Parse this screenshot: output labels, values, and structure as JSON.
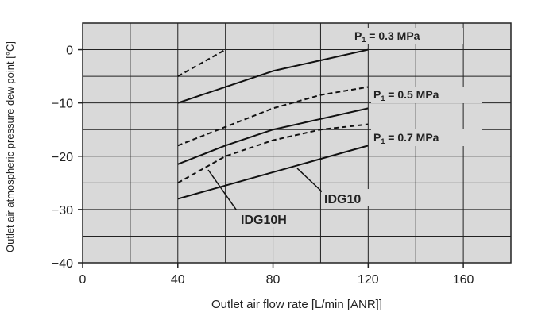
{
  "chart_data": {
    "type": "line",
    "xlabel": "Outlet air flow rate [L/min [ANR]]",
    "ylabel": "Outlet air atmospheric pressure dew point [°C]",
    "xlim": [
      0,
      180
    ],
    "ylim": [
      -40,
      5
    ],
    "x_ticks": [
      "0",
      "40",
      "80",
      "120",
      "160"
    ],
    "y_ticks": [
      "0",
      "−10",
      "−20",
      "−30",
      "−40"
    ],
    "x_tick_values": [
      0,
      40,
      80,
      120,
      160
    ],
    "y_tick_values": [
      0,
      -10,
      -20,
      -30,
      -40
    ],
    "grid": true,
    "background": "#d9d9d9",
    "pressure_labels": [
      {
        "main": "P",
        "sub": "1",
        "rest": " = 0.3 MPa"
      },
      {
        "main": "P",
        "sub": "1",
        "rest": " = 0.5 MPa"
      },
      {
        "main": "P",
        "sub": "1",
        "rest": " = 0.7 MPa"
      }
    ],
    "series_labels": [
      "IDG10",
      "IDG10H"
    ],
    "series": [
      {
        "model": "IDG10",
        "pressure": "0.3 MPa",
        "style": "solid",
        "x": [
          40,
          60,
          80,
          100,
          120
        ],
        "y": [
          -10,
          -7,
          -4,
          -2,
          0
        ]
      },
      {
        "model": "IDG10H",
        "pressure": "0.3 MPa",
        "style": "dashed",
        "x": [
          40,
          50,
          60
        ],
        "y": [
          -5,
          -2.5,
          0
        ]
      },
      {
        "model": "IDG10",
        "pressure": "0.5 MPa",
        "style": "solid",
        "x": [
          40,
          60,
          80,
          100,
          120
        ],
        "y": [
          -21.5,
          -18,
          -15,
          -13,
          -11
        ]
      },
      {
        "model": "IDG10H",
        "pressure": "0.5 MPa",
        "style": "dashed",
        "x": [
          40,
          60,
          80,
          100,
          120
        ],
        "y": [
          -18,
          -14.5,
          -11,
          -8.5,
          -7
        ]
      },
      {
        "model": "IDG10",
        "pressure": "0.7 MPa",
        "style": "solid",
        "x": [
          40,
          60,
          80,
          100,
          120
        ],
        "y": [
          -28,
          -25.5,
          -23,
          -20.5,
          -18
        ]
      },
      {
        "model": "IDG10H",
        "pressure": "0.7 MPa",
        "style": "dashed",
        "x": [
          40,
          60,
          80,
          100,
          120
        ],
        "y": [
          -25,
          -20,
          -17,
          -15,
          -14
        ]
      }
    ]
  }
}
